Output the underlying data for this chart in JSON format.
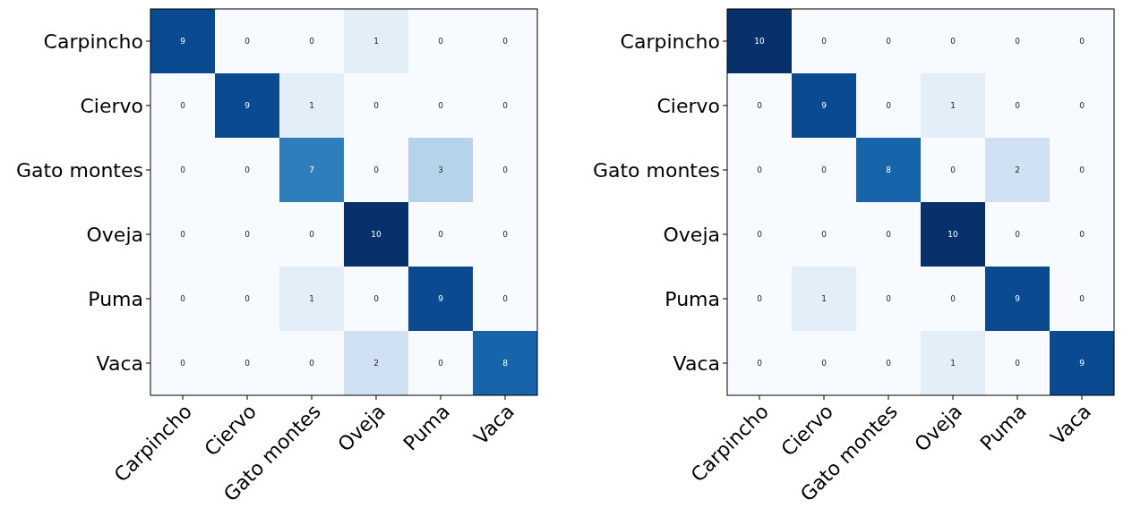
{
  "chart_data": [
    {
      "type": "heatmap",
      "categories": [
        "Carpincho",
        "Ciervo",
        "Gato montes",
        "Oveja",
        "Puma",
        "Vaca"
      ],
      "y_categories": [
        "Carpincho",
        "Ciervo",
        "Gato montes",
        "Oveja",
        "Puma",
        "Vaca"
      ],
      "data_labels": true,
      "cells": [
        [
          9,
          0,
          0,
          1,
          0,
          0
        ],
        [
          0,
          9,
          1,
          0,
          0,
          0
        ],
        [
          0,
          0,
          7,
          0,
          3,
          0
        ],
        [
          0,
          0,
          0,
          10,
          0,
          0
        ],
        [
          0,
          0,
          1,
          0,
          9,
          0
        ],
        [
          0,
          0,
          0,
          2,
          0,
          8
        ]
      ]
    },
    {
      "type": "heatmap",
      "categories": [
        "Carpincho",
        "Ciervo",
        "Gato montes",
        "Oveja",
        "Puma",
        "Vaca"
      ],
      "y_categories": [
        "Carpincho",
        "Ciervo",
        "Gato montes",
        "Oveja",
        "Puma",
        "Vaca"
      ],
      "data_labels": true,
      "cells": [
        [
          10,
          0,
          0,
          0,
          0,
          0
        ],
        [
          0,
          9,
          0,
          1,
          0,
          0
        ],
        [
          0,
          0,
          8,
          0,
          2,
          0
        ],
        [
          0,
          0,
          0,
          10,
          0,
          0
        ],
        [
          0,
          1,
          0,
          0,
          9,
          0
        ],
        [
          0,
          0,
          0,
          1,
          0,
          9
        ]
      ]
    }
  ]
}
